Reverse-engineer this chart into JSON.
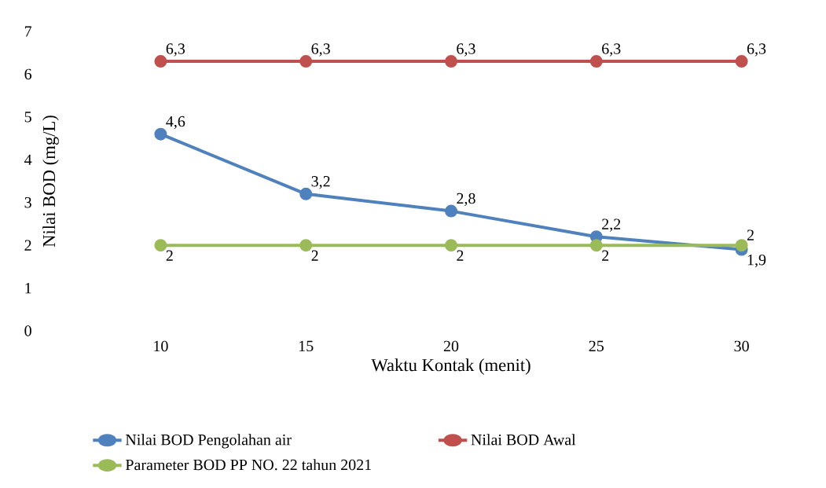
{
  "chart_data": {
    "type": "line",
    "xlabel": "Waktu Kontak (menit)",
    "ylabel": "Nilai BOD (mg/L)",
    "categories": [
      "10",
      "15",
      "20",
      "25",
      "30"
    ],
    "series": [
      {
        "name": "Nilai BOD Pengolahan air",
        "color": "#4f81bd",
        "values": [
          4.6,
          3.2,
          2.8,
          2.2,
          1.9
        ],
        "value_labels": [
          "4,6",
          "3,2",
          "2,8",
          "2,2",
          "1,9"
        ]
      },
      {
        "name": "Nilai BOD Awal",
        "color": "#c0504d",
        "values": [
          6.3,
          6.3,
          6.3,
          6.3,
          6.3
        ],
        "value_labels": [
          "6,3",
          "6,3",
          "6,3",
          "6,3",
          "6,3"
        ]
      },
      {
        "name": "Parameter BOD PP NO. 22 tahun 2021",
        "color": "#9bbb59",
        "values": [
          2,
          2,
          2,
          2,
          2
        ],
        "value_labels": [
          "2",
          "2",
          "2",
          "2",
          "2"
        ]
      }
    ],
    "ylim": [
      0,
      7
    ],
    "yticks": [
      0,
      1,
      2,
      3,
      4,
      5,
      6,
      7
    ],
    "grid": false,
    "legend": "bottom",
    "marker": "circle",
    "line_style": "solid"
  }
}
